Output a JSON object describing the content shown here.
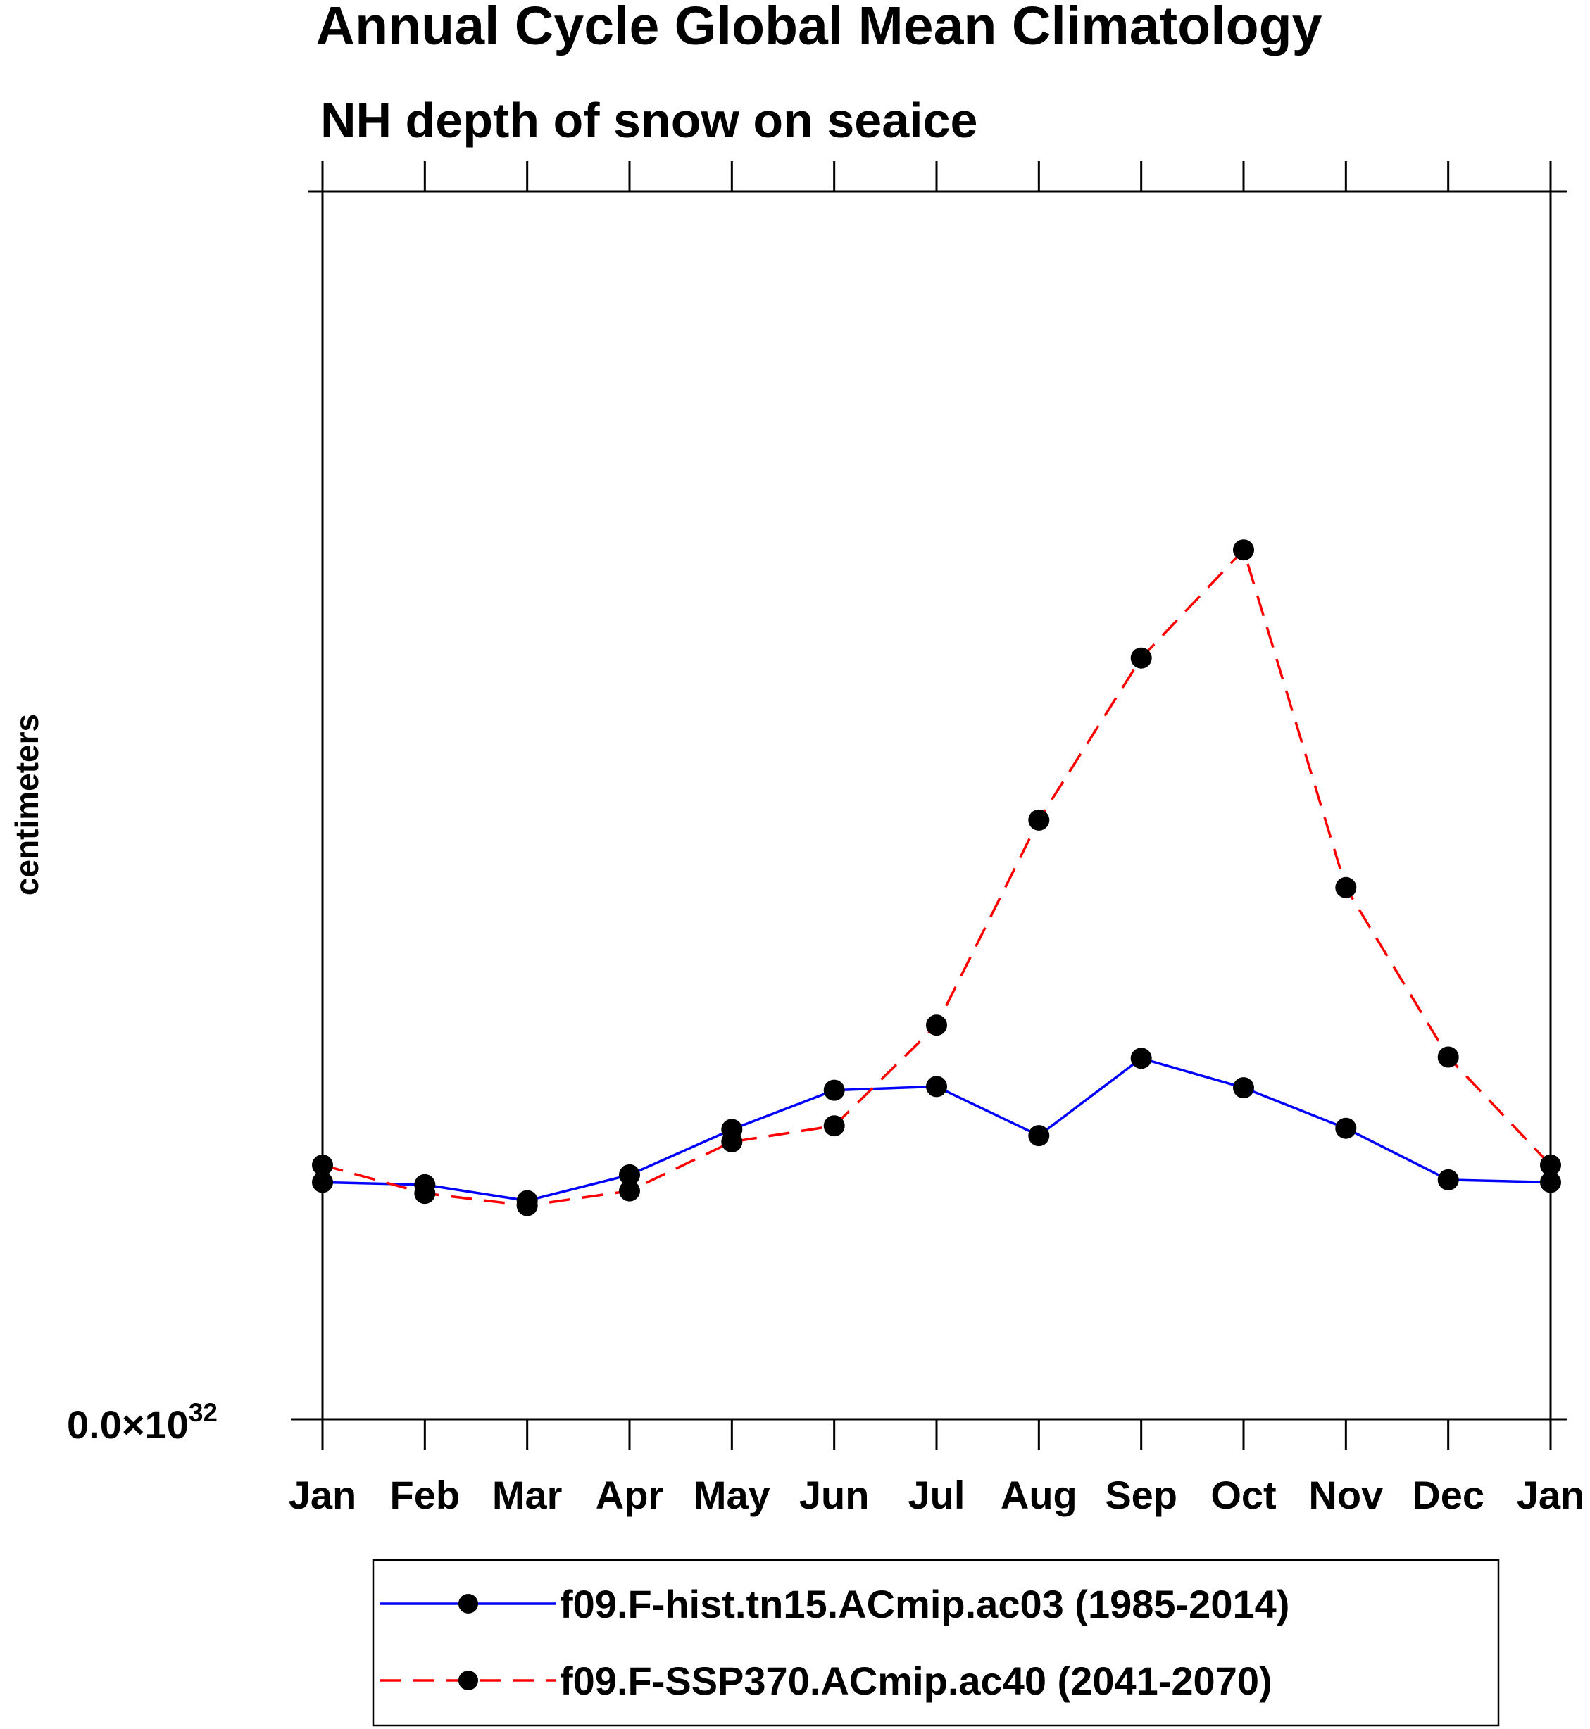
{
  "chart_data": {
    "type": "line",
    "title": "Annual Cycle Global Mean Climatology",
    "subtitle": "NH depth of snow on seaice",
    "ylabel": "centimeters",
    "xlabel": "",
    "y_tick_label": "0.0×10",
    "y_tick_exponent": "32",
    "categories": [
      "Jan",
      "Feb",
      "Mar",
      "Apr",
      "May",
      "Jun",
      "Jul",
      "Aug",
      "Sep",
      "Oct",
      "Nov",
      "Dec",
      "Jan"
    ],
    "ylim": [
      0,
      1
    ],
    "grid": false,
    "legend_position": "bottom",
    "series": [
      {
        "name": "f09.F-hist.tn15.ACmip.ac03 (1985-2014)",
        "color": "#0000ff",
        "dash": "solid",
        "marker": "filled-circle",
        "values": [
          0.193,
          0.191,
          0.178,
          0.199,
          0.236,
          0.268,
          0.271,
          0.231,
          0.294,
          0.27,
          0.237,
          0.195,
          0.193
        ]
      },
      {
        "name": "f09.F-SSP370.ACmip.ac40 (2041-2070)",
        "color": "#ff0000",
        "dash": "dashed",
        "marker": "filled-circle",
        "values": [
          0.207,
          0.184,
          0.174,
          0.186,
          0.226,
          0.239,
          0.321,
          0.488,
          0.62,
          0.708,
          0.433,
          0.295,
          0.207
        ]
      }
    ]
  }
}
